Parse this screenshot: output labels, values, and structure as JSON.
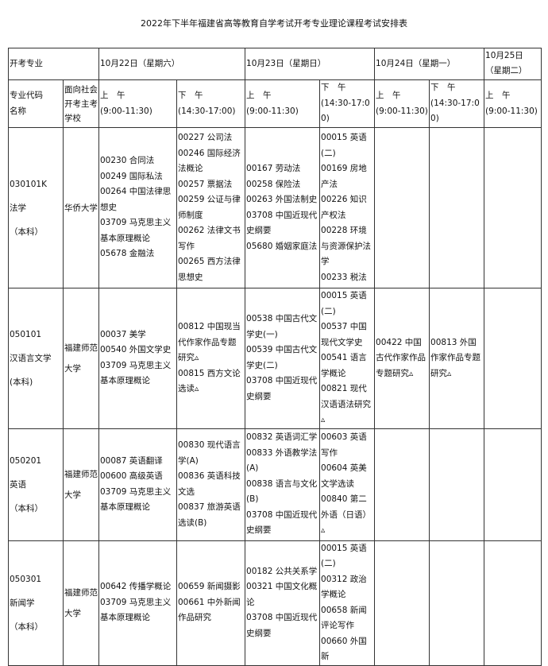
{
  "title": "2022年下半年福建省高等教育自学考试开考专业理论课程考试安排表",
  "header": {
    "major_label": "开考专业",
    "dates": [
      "10月22日（星期六）",
      "10月23日（星期日）",
      "10月24日（星期一）",
      "10月25日（星期二）"
    ],
    "code_label": [
      "专业代码",
      "名称"
    ],
    "school_label": [
      "面向社会",
      "开考主考",
      "学校"
    ],
    "sessions": [
      {
        "label": "上　午",
        "time": "(9:00-11:30)"
      },
      {
        "label": "下　午",
        "time": "(14:30-17:00)"
      },
      {
        "label": "上　午",
        "time": "(9:00-11:30)"
      },
      {
        "label": "下　午",
        "time": "(14:30-17:00)"
      },
      {
        "label": "上　午",
        "time": "(9:00-11:30)"
      },
      {
        "label": "下　午",
        "time": "(14:30-17:00)"
      },
      {
        "label": "上　午",
        "time": "(9:00-11:30)"
      }
    ]
  },
  "rows": [
    {
      "code": "030101K",
      "name": "法学",
      "level": "（本科）",
      "school": "华侨大学",
      "cells": [
        [
          "00230 合同法",
          "00249 国际私法",
          "00264 中国法律思想史",
          "03709 马克思主义基本原理概论",
          "05678 金融法"
        ],
        [
          "00227 公司法",
          "00246 国际经济法概论",
          "00257 票据法",
          "00259 公证与律师制度",
          "00262 法律文书写作",
          "00265 西方法律思想史"
        ],
        [
          "00167 劳动法",
          "00258 保险法",
          "00263 外国法制史",
          "03708 中国近现代史纲要",
          "05680 婚姻家庭法"
        ],
        [
          "00015 英语(二)",
          "00169 房地产法",
          "00226 知识产权法",
          "00228 环境与资源保护法学",
          "00233 税法"
        ],
        [],
        [],
        []
      ]
    },
    {
      "code": "050101",
      "name": "汉语言文学",
      "level": "(本科)",
      "school": "福建师范大学",
      "cells": [
        [
          "00037 美学",
          "00540 外国文学史",
          "03709 马克思主义基本原理概论"
        ],
        [
          "00812 中国现当代作家作品专题研究▵",
          "00815 西方文论选读▵"
        ],
        [
          "00538 中国古代文学史(一)",
          "00539 中国古代文学史(二)",
          "03708 中国近现代史纲要"
        ],
        [
          "00015 英语(二)",
          "00537 中国现代文学史",
          "00541 语言学概论",
          "00821 现代汉语语法研究▵"
        ],
        [
          "00422 中国古代作家作品专题研究▵"
        ],
        [
          "00813 外国作家作品专题研究▵"
        ],
        []
      ]
    },
    {
      "code": "050201",
      "name": "英语",
      "level": "（本科）",
      "school": "福建师范大学",
      "cells": [
        [
          "00087 英语翻译",
          "00600 高级英语",
          "03709 马克思主义基本原理概论"
        ],
        [
          "00830 现代语言学(A)",
          "00836 英语科技文选",
          "00837 旅游英语选读(B)"
        ],
        [
          "00832 英语词汇学",
          "00833 外语教学法(A)",
          "00838 语言与文化(B)",
          "03708 中国近现代史纲要"
        ],
        [
          "00603 英语写作",
          "00604 英美文学选读",
          "00840 第二外语（日语）▵"
        ],
        [],
        [],
        []
      ]
    },
    {
      "code": "050301",
      "name": "新闻学",
      "level": "（本科）",
      "school": "福建师范大学",
      "cells": [
        [
          "00642 传播学概论",
          "03709 马克思主义基本原理概论"
        ],
        [
          "00659 新闻摄影",
          "00661 中外新闻作品研究"
        ],
        [
          "00182 公共关系学",
          "00321 中国文化概论",
          "03708 中国近现代史纲要"
        ],
        [
          "00015 英语(二)",
          "00312 政治学概论",
          "00658 新闻评论写作",
          "00660 外国新"
        ],
        [],
        [],
        []
      ]
    }
  ]
}
